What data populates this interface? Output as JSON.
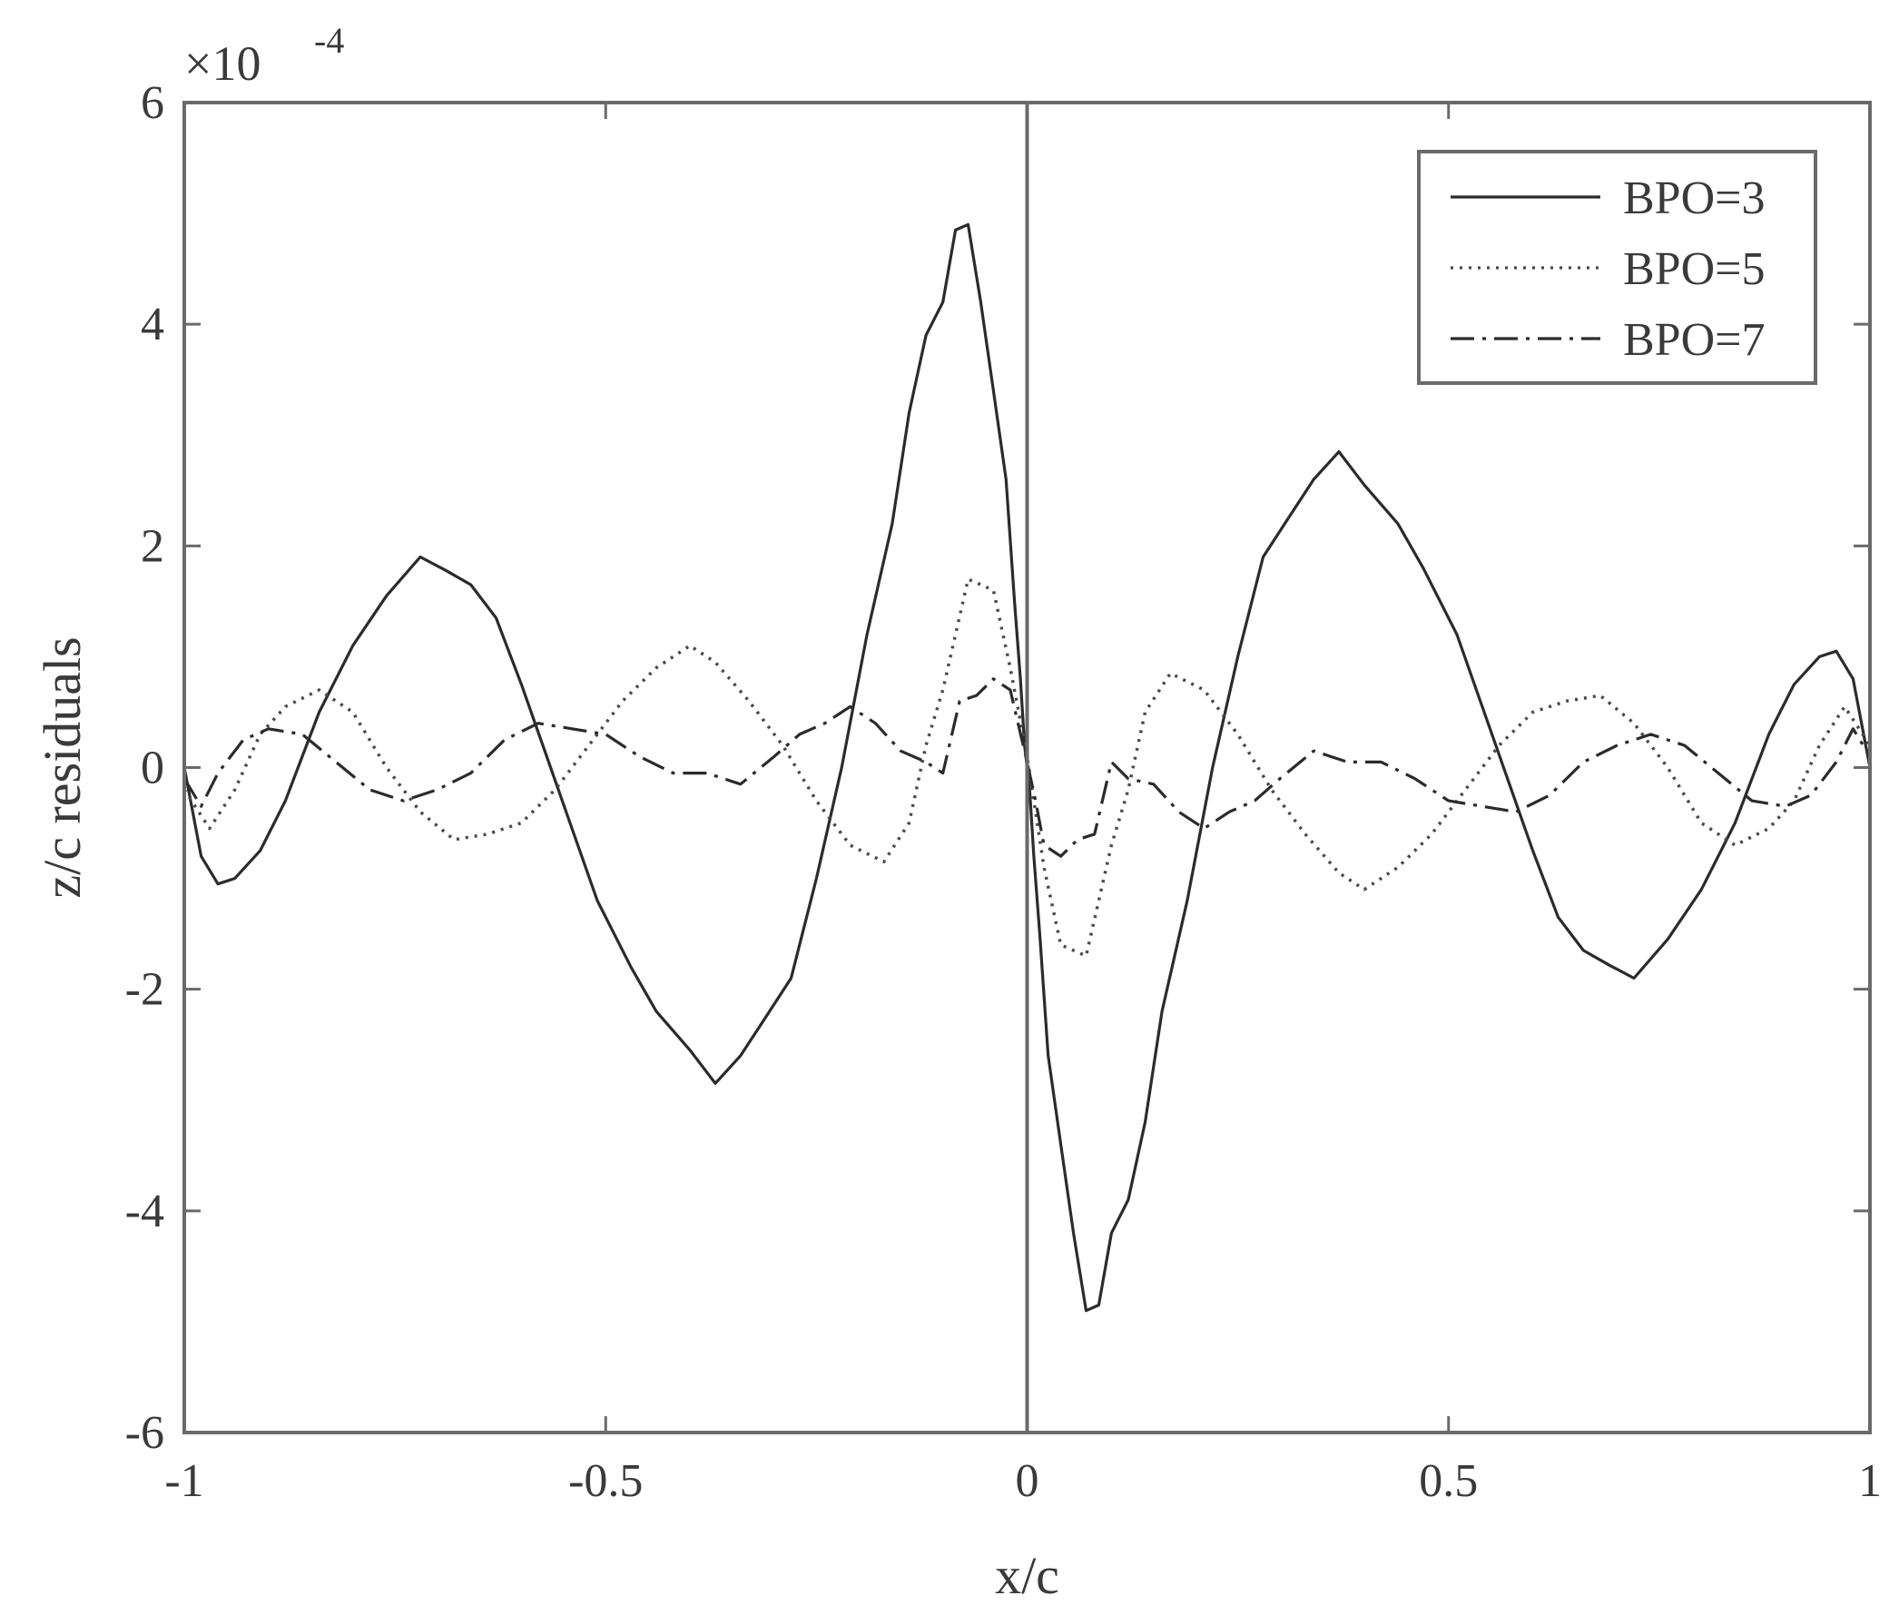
{
  "chart_data": {
    "type": "line",
    "xlabel": "x/c",
    "ylabel": "z/c residuals",
    "exponent_label": "×10",
    "exponent_power": "-4",
    "xlim": [
      -1,
      1
    ],
    "ylim": [
      -6,
      6
    ],
    "y_scale_note": "values shown in units of 1e-4",
    "x_ticks": [
      -1,
      -0.5,
      0,
      0.5,
      1
    ],
    "x_tick_labels": [
      "-1",
      "-0.5",
      "0",
      "0.5",
      "1"
    ],
    "y_ticks": [
      -6,
      -4,
      -2,
      0,
      2,
      4,
      6
    ],
    "y_tick_labels": [
      "-6",
      "-4",
      "-2",
      "0",
      "2",
      "4",
      "6"
    ],
    "grid": false,
    "legend_position": "top-right",
    "series": [
      {
        "name": "BPO=3",
        "style": "solid",
        "color": "#2b2b2b",
        "points": [
          [
            -1,
            0
          ],
          [
            -0.98,
            -0.8
          ],
          [
            -0.96,
            -1.05
          ],
          [
            -0.94,
            -1.0
          ],
          [
            -0.91,
            -0.75
          ],
          [
            -0.88,
            -0.3
          ],
          [
            -0.84,
            0.5
          ],
          [
            -0.8,
            1.1
          ],
          [
            -0.76,
            1.55
          ],
          [
            -0.72,
            1.9
          ],
          [
            -0.69,
            1.78
          ],
          [
            -0.66,
            1.65
          ],
          [
            -0.63,
            1.35
          ],
          [
            -0.6,
            0.75
          ],
          [
            -0.57,
            0.1
          ],
          [
            -0.54,
            -0.55
          ],
          [
            -0.51,
            -1.2
          ],
          [
            -0.47,
            -1.8
          ],
          [
            -0.44,
            -2.2
          ],
          [
            -0.4,
            -2.55
          ],
          [
            -0.37,
            -2.85
          ],
          [
            -0.34,
            -2.6
          ],
          [
            -0.31,
            -2.25
          ],
          [
            -0.28,
            -1.9
          ],
          [
            -0.25,
            -1.0
          ],
          [
            -0.22,
            0.0
          ],
          [
            -0.19,
            1.2
          ],
          [
            -0.16,
            2.2
          ],
          [
            -0.14,
            3.2
          ],
          [
            -0.12,
            3.9
          ],
          [
            -0.1,
            4.2
          ],
          [
            -0.085,
            4.85
          ],
          [
            -0.07,
            4.9
          ],
          [
            -0.055,
            4.2
          ],
          [
            -0.04,
            3.4
          ],
          [
            -0.025,
            2.6
          ],
          [
            -0.015,
            1.5
          ],
          [
            -0.008,
            0.8
          ],
          [
            -0.003,
            0.2
          ],
          [
            0,
            0
          ],
          [
            0.003,
            -0.2
          ],
          [
            0.008,
            -0.8
          ],
          [
            0.015,
            -1.5
          ],
          [
            0.025,
            -2.6
          ],
          [
            0.04,
            -3.4
          ],
          [
            0.055,
            -4.2
          ],
          [
            0.07,
            -4.9
          ],
          [
            0.085,
            -4.85
          ],
          [
            0.1,
            -4.2
          ],
          [
            0.12,
            -3.9
          ],
          [
            0.14,
            -3.2
          ],
          [
            0.16,
            -2.2
          ],
          [
            0.19,
            -1.2
          ],
          [
            0.22,
            0.0
          ],
          [
            0.25,
            1.0
          ],
          [
            0.28,
            1.9
          ],
          [
            0.31,
            2.25
          ],
          [
            0.34,
            2.6
          ],
          [
            0.37,
            2.85
          ],
          [
            0.4,
            2.55
          ],
          [
            0.44,
            2.2
          ],
          [
            0.47,
            1.8
          ],
          [
            0.51,
            1.2
          ],
          [
            0.54,
            0.55
          ],
          [
            0.57,
            -0.1
          ],
          [
            0.6,
            -0.75
          ],
          [
            0.63,
            -1.35
          ],
          [
            0.66,
            -1.65
          ],
          [
            0.69,
            -1.78
          ],
          [
            0.72,
            -1.9
          ],
          [
            0.76,
            -1.55
          ],
          [
            0.8,
            -1.1
          ],
          [
            0.84,
            -0.5
          ],
          [
            0.88,
            0.3
          ],
          [
            0.91,
            0.75
          ],
          [
            0.94,
            1.0
          ],
          [
            0.96,
            1.05
          ],
          [
            0.98,
            0.8
          ],
          [
            1,
            0
          ]
        ]
      },
      {
        "name": "BPO=5",
        "style": "dotted",
        "color": "#4a4a4a",
        "points": [
          [
            -1,
            -0.2
          ],
          [
            -0.97,
            -0.55
          ],
          [
            -0.94,
            -0.2
          ],
          [
            -0.91,
            0.3
          ],
          [
            -0.88,
            0.55
          ],
          [
            -0.84,
            0.7
          ],
          [
            -0.8,
            0.5
          ],
          [
            -0.76,
            0.0
          ],
          [
            -0.72,
            -0.4
          ],
          [
            -0.68,
            -0.65
          ],
          [
            -0.64,
            -0.6
          ],
          [
            -0.6,
            -0.5
          ],
          [
            -0.56,
            -0.2
          ],
          [
            -0.52,
            0.2
          ],
          [
            -0.48,
            0.6
          ],
          [
            -0.44,
            0.9
          ],
          [
            -0.4,
            1.1
          ],
          [
            -0.37,
            0.95
          ],
          [
            -0.33,
            0.6
          ],
          [
            -0.29,
            0.2
          ],
          [
            -0.25,
            -0.3
          ],
          [
            -0.21,
            -0.7
          ],
          [
            -0.17,
            -0.85
          ],
          [
            -0.14,
            -0.5
          ],
          [
            -0.12,
            0.2
          ],
          [
            -0.1,
            0.7
          ],
          [
            -0.07,
            1.7
          ],
          [
            -0.04,
            1.6
          ],
          [
            -0.02,
            0.9
          ],
          [
            0,
            0.1
          ],
          [
            0.02,
            -0.9
          ],
          [
            0.04,
            -1.6
          ],
          [
            0.07,
            -1.7
          ],
          [
            0.1,
            -0.7
          ],
          [
            0.12,
            -0.2
          ],
          [
            0.14,
            0.5
          ],
          [
            0.17,
            0.85
          ],
          [
            0.21,
            0.7
          ],
          [
            0.25,
            0.3
          ],
          [
            0.29,
            -0.2
          ],
          [
            0.33,
            -0.6
          ],
          [
            0.37,
            -0.95
          ],
          [
            0.4,
            -1.1
          ],
          [
            0.44,
            -0.9
          ],
          [
            0.48,
            -0.6
          ],
          [
            0.52,
            -0.2
          ],
          [
            0.56,
            0.2
          ],
          [
            0.6,
            0.5
          ],
          [
            0.64,
            0.6
          ],
          [
            0.68,
            0.65
          ],
          [
            0.72,
            0.4
          ],
          [
            0.76,
            0.0
          ],
          [
            0.8,
            -0.5
          ],
          [
            0.84,
            -0.7
          ],
          [
            0.88,
            -0.55
          ],
          [
            0.91,
            -0.3
          ],
          [
            0.94,
            0.2
          ],
          [
            0.97,
            0.55
          ],
          [
            1,
            0.2
          ]
        ]
      },
      {
        "name": "BPO=7",
        "style": "dashdot",
        "color": "#2b2b2b",
        "points": [
          [
            -1,
            -0.1
          ],
          [
            -0.98,
            -0.35
          ],
          [
            -0.96,
            -0.05
          ],
          [
            -0.93,
            0.25
          ],
          [
            -0.9,
            0.35
          ],
          [
            -0.86,
            0.3
          ],
          [
            -0.82,
            0.05
          ],
          [
            -0.78,
            -0.2
          ],
          [
            -0.74,
            -0.3
          ],
          [
            -0.7,
            -0.2
          ],
          [
            -0.66,
            -0.05
          ],
          [
            -0.62,
            0.25
          ],
          [
            -0.58,
            0.4
          ],
          [
            -0.54,
            0.35
          ],
          [
            -0.5,
            0.3
          ],
          [
            -0.46,
            0.1
          ],
          [
            -0.42,
            -0.05
          ],
          [
            -0.38,
            -0.05
          ],
          [
            -0.34,
            -0.15
          ],
          [
            -0.3,
            0.1
          ],
          [
            -0.27,
            0.3
          ],
          [
            -0.24,
            0.4
          ],
          [
            -0.21,
            0.55
          ],
          [
            -0.18,
            0.4
          ],
          [
            -0.15,
            0.15
          ],
          [
            -0.12,
            0.05
          ],
          [
            -0.1,
            -0.05
          ],
          [
            -0.08,
            0.6
          ],
          [
            -0.06,
            0.65
          ],
          [
            -0.04,
            0.8
          ],
          [
            -0.02,
            0.7
          ],
          [
            0,
            0.05
          ],
          [
            0.01,
            -0.3
          ],
          [
            0.02,
            -0.7
          ],
          [
            0.04,
            -0.8
          ],
          [
            0.06,
            -0.65
          ],
          [
            0.08,
            -0.6
          ],
          [
            0.1,
            0.05
          ],
          [
            0.12,
            -0.1
          ],
          [
            0.15,
            -0.15
          ],
          [
            0.18,
            -0.4
          ],
          [
            0.21,
            -0.55
          ],
          [
            0.24,
            -0.4
          ],
          [
            0.27,
            -0.3
          ],
          [
            0.3,
            -0.1
          ],
          [
            0.34,
            0.15
          ],
          [
            0.38,
            0.05
          ],
          [
            0.42,
            0.05
          ],
          [
            0.46,
            -0.1
          ],
          [
            0.5,
            -0.3
          ],
          [
            0.54,
            -0.35
          ],
          [
            0.58,
            -0.4
          ],
          [
            0.62,
            -0.25
          ],
          [
            0.66,
            0.05
          ],
          [
            0.7,
            0.2
          ],
          [
            0.74,
            0.3
          ],
          [
            0.78,
            0.2
          ],
          [
            0.82,
            -0.05
          ],
          [
            0.86,
            -0.3
          ],
          [
            0.9,
            -0.35
          ],
          [
            0.93,
            -0.25
          ],
          [
            0.96,
            0.05
          ],
          [
            0.98,
            0.35
          ],
          [
            1,
            0.1
          ]
        ]
      }
    ]
  }
}
